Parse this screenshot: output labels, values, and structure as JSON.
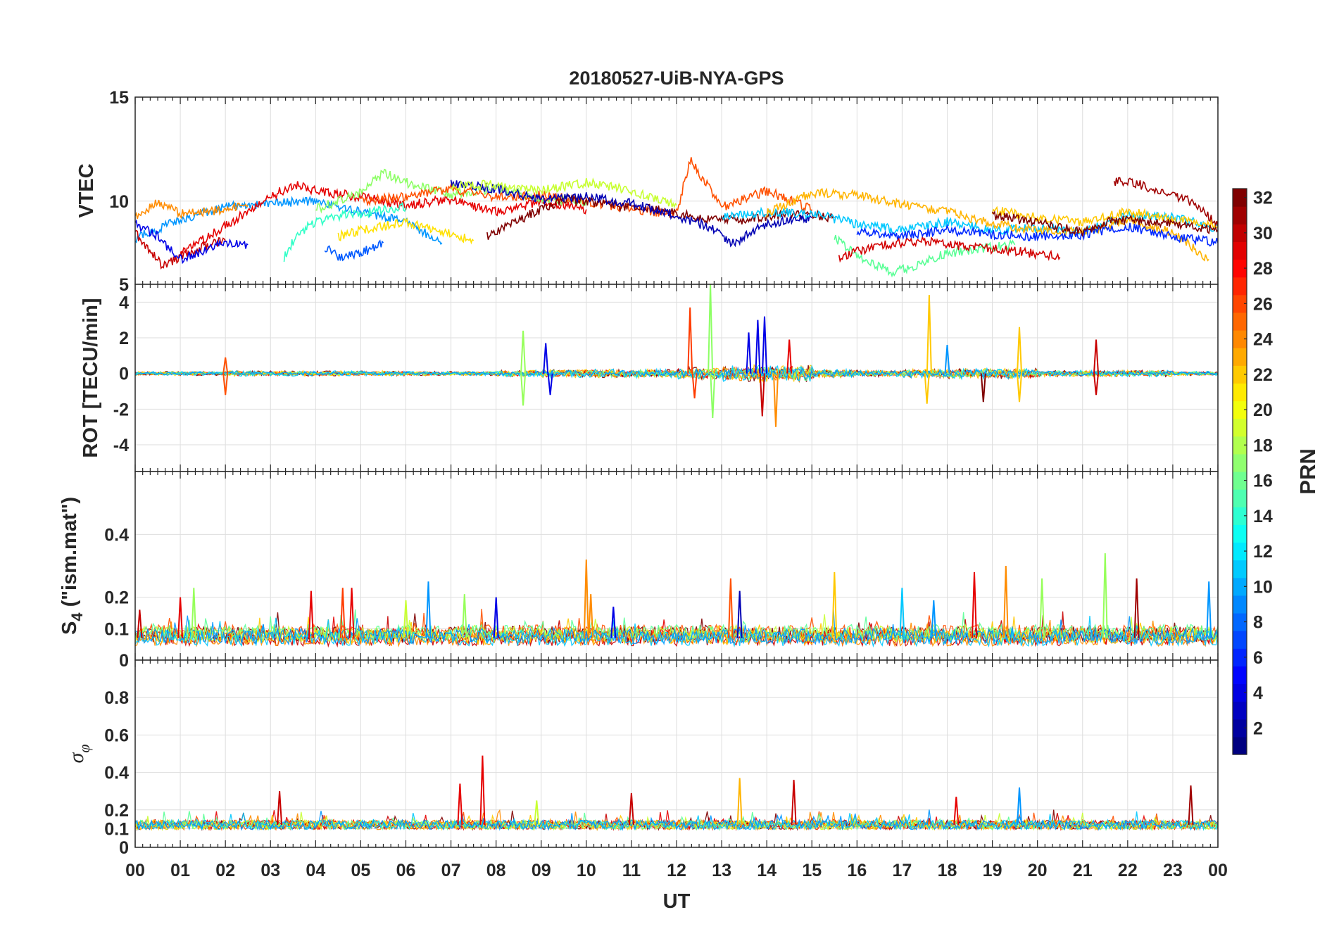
{
  "figure": {
    "title": "20180527-UiB-NYA-GPS",
    "xlabel": "UT"
  },
  "panels": [
    {
      "id": "vtec",
      "ylabel": "VTEC",
      "ylim": [
        6,
        15
      ],
      "yticks": [
        10,
        15
      ],
      "ytick_labels": [
        "10",
        "15"
      ]
    },
    {
      "id": "rot",
      "ylabel": "ROT [TECU/min]",
      "ylim": [
        -5.5,
        5
      ],
      "yticks": [
        -4,
        -2,
        0,
        2,
        4,
        5
      ],
      "ytick_labels": [
        "-4",
        "-2",
        "0",
        "2",
        "4",
        "5"
      ]
    },
    {
      "id": "s4",
      "ylabel_main": "S",
      "ylabel_sub": "4",
      "ylabel_rest": " (\"ism.mat\")",
      "ylim": [
        0,
        0.6
      ],
      "yticks": [
        0,
        0.1,
        0.2,
        0.4
      ],
      "ytick_labels": [
        "0",
        "0.1",
        "0.2",
        "0.4"
      ]
    },
    {
      "id": "sigma",
      "ylabel_main": "σ",
      "ylabel_sub": "φ",
      "ylim": [
        0,
        1
      ],
      "yticks": [
        0,
        0.1,
        0.2,
        0.4,
        0.6,
        0.8
      ],
      "ytick_labels": [
        "0",
        "0.1",
        "0.2",
        "0.4",
        "0.6",
        "0.8"
      ]
    }
  ],
  "colorbar": {
    "label": "PRN",
    "range": [
      1,
      32
    ],
    "ticks": [
      "2",
      "4",
      "6",
      "8",
      "10",
      "12",
      "14",
      "16",
      "18",
      "20",
      "22",
      "24",
      "26",
      "28",
      "30",
      "32"
    ],
    "colormap": "jet"
  },
  "chart_data": [
    {
      "type": "line",
      "title": "20180527-UiB-NYA-GPS",
      "xlabel": "",
      "ylabel": "VTEC",
      "x_ticks": [
        "00",
        "01",
        "02",
        "03",
        "04",
        "05",
        "06",
        "07",
        "08",
        "09",
        "10",
        "11",
        "12",
        "13",
        "14",
        "15",
        "16",
        "17",
        "18",
        "19",
        "20",
        "21",
        "22",
        "23",
        "00"
      ],
      "xlim": [
        0,
        24
      ],
      "ylim": [
        6,
        15
      ],
      "grid": true,
      "series": [
        {
          "prn": 10,
          "color": "#0096ff",
          "x": [
            0,
            1,
            2,
            3,
            4,
            5,
            6,
            6.8
          ],
          "y": [
            8.2,
            9.1,
            9.7,
            9.9,
            10.0,
            9.5,
            9.0,
            8.0
          ]
        },
        {
          "prn": 24,
          "color": "#ff8c00",
          "x": [
            0,
            0.5,
            1,
            1.5,
            2,
            2.5
          ],
          "y": [
            9.3,
            9.9,
            9.4,
            9.5,
            9.6,
            9.8
          ]
        },
        {
          "prn": 30,
          "color": "#c80000",
          "x": [
            0,
            0.4,
            0.6,
            1.0,
            1.5,
            2.0
          ],
          "y": [
            8.5,
            7.4,
            6.9,
            7.3,
            7.8,
            8.1
          ]
        },
        {
          "prn": 28,
          "color": "#e60000",
          "x": [
            1,
            2,
            3,
            3.5,
            4,
            5,
            6,
            7,
            8,
            9,
            10
          ],
          "y": [
            7.5,
            8.8,
            10.2,
            10.8,
            10.5,
            10.2,
            9.8,
            10.1,
            9.5,
            10.0,
            9.6
          ]
        },
        {
          "prn": 4,
          "color": "#0000e6",
          "x": [
            0,
            0.5,
            1,
            1.5,
            2,
            2.5
          ],
          "y": [
            8.9,
            8.3,
            7.2,
            7.6,
            8.0,
            7.9
          ]
        },
        {
          "prn": 14,
          "color": "#32ffc8",
          "x": [
            3.3,
            3.6,
            4.0,
            4.5,
            5.0,
            5.5,
            6.0
          ],
          "y": [
            7.3,
            8.4,
            9.0,
            9.3,
            9.4,
            9.6,
            9.7
          ]
        },
        {
          "prn": 16,
          "color": "#8cff64",
          "x": [
            4,
            5,
            5.5,
            6,
            7,
            8,
            9,
            10
          ],
          "y": [
            9.6,
            10.4,
            11.4,
            10.9,
            10.3,
            10.6,
            10.1,
            10.0
          ]
        },
        {
          "prn": 20,
          "color": "#ffe100",
          "x": [
            4.5,
            5,
            6,
            7,
            7.5
          ],
          "y": [
            8.3,
            8.6,
            9.0,
            8.4,
            8.1
          ]
        },
        {
          "prn": 8,
          "color": "#005aff",
          "x": [
            4.2,
            4.5,
            5,
            5.5
          ],
          "y": [
            7.8,
            7.3,
            7.5,
            8.0
          ]
        },
        {
          "prn": 26,
          "color": "#ff5000",
          "x": [
            5,
            6,
            7,
            8,
            9,
            10,
            11,
            12,
            12.3,
            13,
            14,
            15
          ],
          "y": [
            10.0,
            10.2,
            10.6,
            10.2,
            10.3,
            10.0,
            9.6,
            9.4,
            12.0,
            9.7,
            10.5,
            9.6
          ]
        },
        {
          "prn": 32,
          "color": "#800000",
          "x": [
            7.8,
            8.5,
            9.5,
            10.5,
            11.5,
            12.5,
            13.5,
            14.5,
            15.5
          ],
          "y": [
            8.3,
            9.1,
            10.1,
            9.8,
            9.6,
            9.2,
            9.1,
            9.4,
            9.2
          ]
        },
        {
          "prn": 2,
          "color": "#0000b4",
          "x": [
            7,
            8,
            9,
            10,
            11,
            12,
            12.8,
            13.2,
            14,
            15
          ],
          "y": [
            10.8,
            10.6,
            10.1,
            10.2,
            9.9,
            9.3,
            8.7,
            7.9,
            8.9,
            9.2
          ]
        },
        {
          "prn": 18,
          "color": "#c8ff32",
          "x": [
            7,
            8,
            9,
            10,
            11,
            12
          ],
          "y": [
            10.7,
            10.8,
            10.5,
            10.9,
            10.5,
            9.8
          ]
        },
        {
          "prn": 12,
          "color": "#00c8ff",
          "x": [
            13,
            14,
            15,
            16,
            17,
            18,
            19,
            20,
            21,
            22,
            23,
            24
          ],
          "y": [
            9.2,
            9.5,
            9.4,
            8.9,
            8.6,
            9.0,
            8.6,
            8.7,
            8.5,
            9.3,
            9.2,
            8.7
          ]
        },
        {
          "prn": 22,
          "color": "#ffb400",
          "x": [
            14,
            15,
            16,
            17,
            18,
            19,
            20,
            21,
            22,
            23,
            23.8
          ],
          "y": [
            9.4,
            10.4,
            10.3,
            9.8,
            9.5,
            8.9,
            8.6,
            8.5,
            9.1,
            8.5,
            7.2
          ]
        },
        {
          "prn": 15,
          "color": "#5aff96",
          "x": [
            15.5,
            16.2,
            16.8,
            17.2,
            18,
            19,
            19.5
          ],
          "y": [
            8.2,
            7.1,
            6.6,
            6.8,
            7.5,
            7.8,
            7.9
          ]
        },
        {
          "prn": 29,
          "color": "#d20000",
          "x": [
            15.6,
            16.5,
            17.5,
            18.5,
            19.5,
            20.5
          ],
          "y": [
            7.3,
            7.9,
            8.1,
            7.8,
            7.6,
            7.3
          ]
        },
        {
          "prn": 6,
          "color": "#0028ff",
          "x": [
            16,
            17,
            18,
            19,
            20,
            21,
            22,
            23,
            24
          ],
          "y": [
            8.6,
            8.3,
            8.6,
            8.4,
            8.3,
            8.4,
            8.8,
            8.3,
            8.0
          ]
        },
        {
          "prn": 31,
          "color": "#a00000",
          "x": [
            21.7,
            22,
            22.5,
            23,
            23.5,
            24
          ],
          "y": [
            10.9,
            11.0,
            10.6,
            10.3,
            9.9,
            8.8
          ]
        },
        {
          "prn": 21,
          "color": "#ffc800",
          "x": [
            19,
            20,
            21,
            22,
            23,
            24
          ],
          "y": [
            9.6,
            9.2,
            9.0,
            9.5,
            9.1,
            8.8
          ]
        },
        {
          "prn": 32,
          "color": "#800000",
          "x": [
            19,
            20,
            21,
            21.5,
            22,
            23,
            24
          ],
          "y": [
            9.3,
            9.0,
            8.5,
            9.0,
            9.1,
            8.9,
            8.6
          ]
        }
      ]
    },
    {
      "type": "line",
      "title": "",
      "xlabel": "",
      "ylabel": "ROT [TECU/min]",
      "xlim": [
        0,
        24
      ],
      "ylim": [
        -5.5,
        5
      ],
      "grid": true,
      "baseline": 0,
      "noise_amplitude_by_hour": [
        0.2,
        0.2,
        0.25,
        0.25,
        0.25,
        0.25,
        0.2,
        0.2,
        0.3,
        0.4,
        0.4,
        0.4,
        0.6,
        0.8,
        0.8,
        0.4,
        0.3,
        0.4,
        0.5,
        0.5,
        0.3,
        0.3,
        0.3,
        0.2
      ],
      "spikes": [
        {
          "x": 8.6,
          "y": 2.4,
          "color": "#96ff5a"
        },
        {
          "x": 8.6,
          "y": -1.8,
          "color": "#96ff5a"
        },
        {
          "x": 9.1,
          "y": 1.7,
          "color": "#0000e6"
        },
        {
          "x": 9.2,
          "y": -1.2,
          "color": "#0000e6"
        },
        {
          "x": 12.3,
          "y": 3.7,
          "color": "#ff3c00"
        },
        {
          "x": 12.4,
          "y": -1.4,
          "color": "#ff3c00"
        },
        {
          "x": 12.75,
          "y": 5.0,
          "color": "#8cff64"
        },
        {
          "x": 12.8,
          "y": -2.5,
          "color": "#8cff64"
        },
        {
          "x": 13.6,
          "y": 2.3,
          "color": "#0000e6"
        },
        {
          "x": 13.8,
          "y": 3.0,
          "color": "#0000e6"
        },
        {
          "x": 13.95,
          "y": 3.2,
          "color": "#0000e6"
        },
        {
          "x": 13.9,
          "y": -2.4,
          "color": "#c80000"
        },
        {
          "x": 14.2,
          "y": -3.0,
          "color": "#ff8c00"
        },
        {
          "x": 14.5,
          "y": 1.9,
          "color": "#e60000"
        },
        {
          "x": 17.6,
          "y": 4.4,
          "color": "#ffc800"
        },
        {
          "x": 17.55,
          "y": -1.7,
          "color": "#ffc800"
        },
        {
          "x": 18.0,
          "y": 1.6,
          "color": "#0096ff"
        },
        {
          "x": 18.8,
          "y": -1.6,
          "color": "#800000"
        },
        {
          "x": 19.6,
          "y": 2.6,
          "color": "#ffc800"
        },
        {
          "x": 19.6,
          "y": -1.6,
          "color": "#ffc800"
        },
        {
          "x": 21.3,
          "y": 1.9,
          "color": "#c80000"
        },
        {
          "x": 21.3,
          "y": -1.2,
          "color": "#c80000"
        },
        {
          "x": 2.0,
          "y": 0.9,
          "color": "#ff5000"
        },
        {
          "x": 2.0,
          "y": -1.2,
          "color": "#ff5000"
        }
      ]
    },
    {
      "type": "line",
      "title": "",
      "xlabel": "",
      "ylabel": "S4 (\"ism.mat\")",
      "xlim": [
        0,
        24
      ],
      "ylim": [
        0,
        0.6
      ],
      "grid": true,
      "baseline": 0.07,
      "spikes": [
        {
          "x": 0.1,
          "y": 0.16,
          "color": "#c80000"
        },
        {
          "x": 1.3,
          "y": 0.23,
          "color": "#96ff5a"
        },
        {
          "x": 1.0,
          "y": 0.2,
          "color": "#e60000"
        },
        {
          "x": 3.9,
          "y": 0.22,
          "color": "#e60000"
        },
        {
          "x": 4.6,
          "y": 0.23,
          "color": "#ff3c00"
        },
        {
          "x": 4.8,
          "y": 0.23,
          "color": "#e60000"
        },
        {
          "x": 6.0,
          "y": 0.19,
          "color": "#c8ff32"
        },
        {
          "x": 6.5,
          "y": 0.25,
          "color": "#0096ff"
        },
        {
          "x": 7.3,
          "y": 0.21,
          "color": "#96ff5a"
        },
        {
          "x": 8.0,
          "y": 0.2,
          "color": "#0000e6"
        },
        {
          "x": 10.0,
          "y": 0.32,
          "color": "#ff8c00"
        },
        {
          "x": 10.1,
          "y": 0.21,
          "color": "#ff8c00"
        },
        {
          "x": 10.6,
          "y": 0.17,
          "color": "#0000e6"
        },
        {
          "x": 13.2,
          "y": 0.26,
          "color": "#ff5000"
        },
        {
          "x": 13.4,
          "y": 0.22,
          "color": "#0000b4"
        },
        {
          "x": 15.5,
          "y": 0.28,
          "color": "#ffc800"
        },
        {
          "x": 17.0,
          "y": 0.23,
          "color": "#00c8ff"
        },
        {
          "x": 17.7,
          "y": 0.19,
          "color": "#0096ff"
        },
        {
          "x": 18.6,
          "y": 0.28,
          "color": "#e60000"
        },
        {
          "x": 19.3,
          "y": 0.3,
          "color": "#ff8c00"
        },
        {
          "x": 20.1,
          "y": 0.26,
          "color": "#96ff5a"
        },
        {
          "x": 21.5,
          "y": 0.34,
          "color": "#96ff5a"
        },
        {
          "x": 22.2,
          "y": 0.26,
          "color": "#a00000"
        },
        {
          "x": 23.8,
          "y": 0.25,
          "color": "#0096ff"
        }
      ]
    },
    {
      "type": "line",
      "title": "",
      "xlabel": "UT",
      "ylabel": "σ_φ",
      "xlim": [
        0,
        24
      ],
      "ylim": [
        0,
        1
      ],
      "grid": true,
      "baseline": 0.12,
      "spikes": [
        {
          "x": 3.2,
          "y": 0.3,
          "color": "#c80000"
        },
        {
          "x": 7.2,
          "y": 0.34,
          "color": "#e60000"
        },
        {
          "x": 7.7,
          "y": 0.49,
          "color": "#e60000"
        },
        {
          "x": 8.9,
          "y": 0.25,
          "color": "#c8ff32"
        },
        {
          "x": 11.0,
          "y": 0.29,
          "color": "#c80000"
        },
        {
          "x": 13.4,
          "y": 0.37,
          "color": "#ffb400"
        },
        {
          "x": 14.6,
          "y": 0.36,
          "color": "#c80000"
        },
        {
          "x": 18.2,
          "y": 0.27,
          "color": "#e60000"
        },
        {
          "x": 19.6,
          "y": 0.32,
          "color": "#0096ff"
        },
        {
          "x": 23.4,
          "y": 0.33,
          "color": "#a00000"
        }
      ]
    }
  ]
}
